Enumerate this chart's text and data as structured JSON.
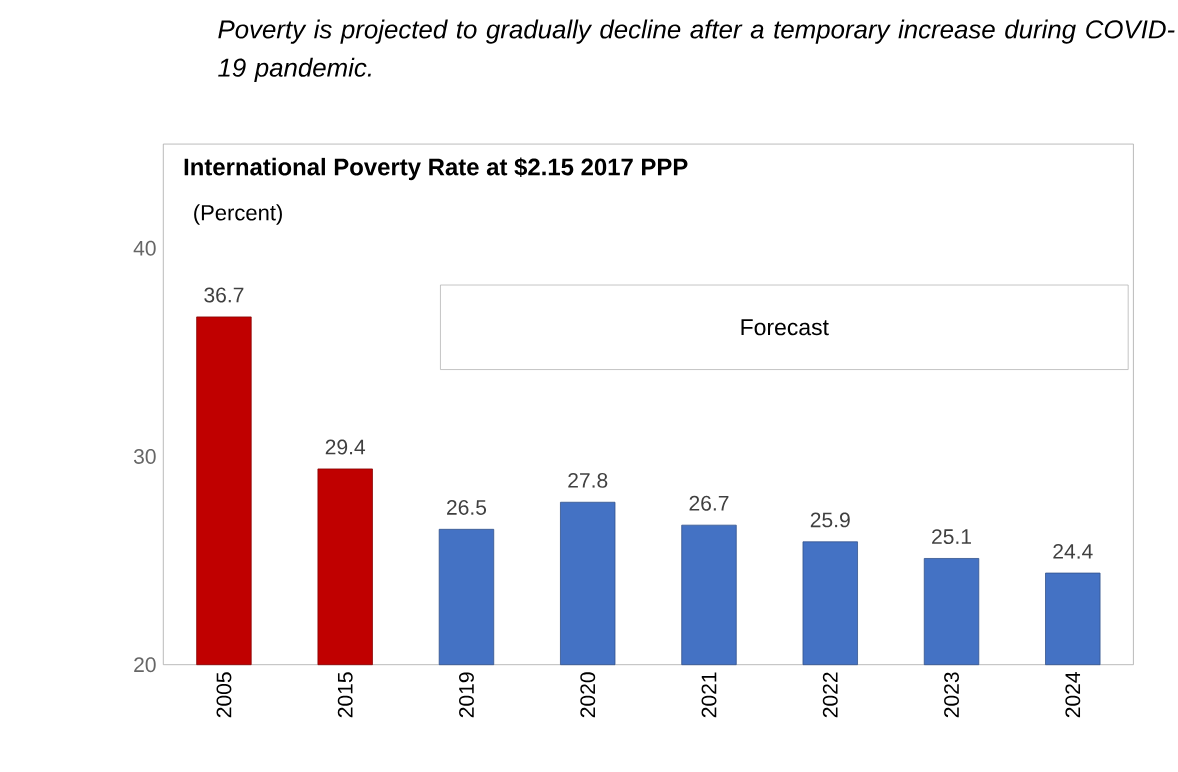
{
  "chart_data": {
    "type": "bar",
    "title": "Poverty is projected to gradually decline after a temporary increase during COVID-19 pandemic.",
    "subtitle": "International Poverty Rate at $2.15 2017 PPP",
    "ylabel": "(Percent)",
    "categories": [
      "2005",
      "2015",
      "2019",
      "2020",
      "2021",
      "2022",
      "2023",
      "2024"
    ],
    "values": [
      36.7,
      29.4,
      26.5,
      27.8,
      26.7,
      25.9,
      25.1,
      24.4
    ],
    "colors": [
      "#c00000",
      "#c00000",
      "#4472c4",
      "#4472c4",
      "#4472c4",
      "#4472c4",
      "#4472c4",
      "#4472c4"
    ],
    "ylim": [
      20,
      45
    ],
    "yticks": [
      20,
      30,
      40
    ],
    "data_labels": true,
    "annotations": [
      "Forecast"
    ]
  }
}
